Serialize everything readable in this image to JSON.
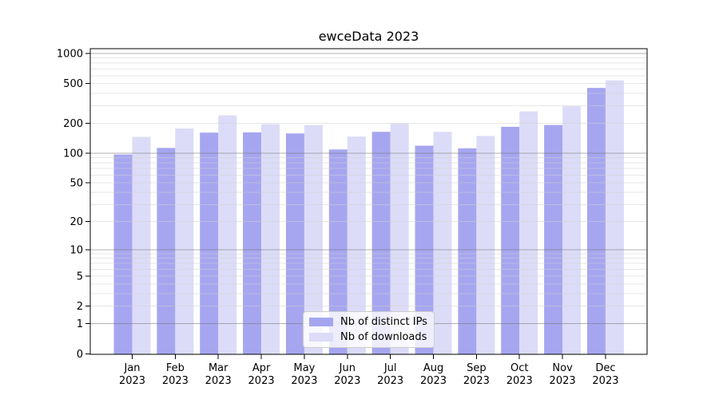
{
  "chart_data": {
    "type": "bar",
    "title": "ewceData 2023",
    "categories": [
      "Jan 2023",
      "Feb 2023",
      "Mar 2023",
      "Apr 2023",
      "May 2023",
      "Jun 2023",
      "Jul 2023",
      "Aug 2023",
      "Sep 2023",
      "Oct 2023",
      "Nov 2023",
      "Dec 2023"
    ],
    "series": [
      {
        "name": "Nb of distinct IPs",
        "color": "#a6a6f0",
        "values": [
          97,
          113,
          161,
          162,
          158,
          109,
          164,
          119,
          112,
          184,
          192,
          452
        ]
      },
      {
        "name": "Nb of downloads",
        "color": "#dcdcf8",
        "values": [
          146,
          177,
          240,
          196,
          192,
          147,
          199,
          164,
          149,
          263,
          296,
          538
        ]
      }
    ],
    "xlabel": "",
    "ylabel": "",
    "yscale": "log1p",
    "yticks": [
      0,
      1,
      2,
      5,
      10,
      20,
      50,
      100,
      200,
      500,
      1000
    ],
    "ylim": [
      0,
      1116
    ],
    "grid": true,
    "legend_position": "lower center inside",
    "colors": {
      "background": "#ffffff",
      "axis": "#000000",
      "major_gridline": "#737373",
      "minor_gridline": "#d0d0d0"
    }
  }
}
